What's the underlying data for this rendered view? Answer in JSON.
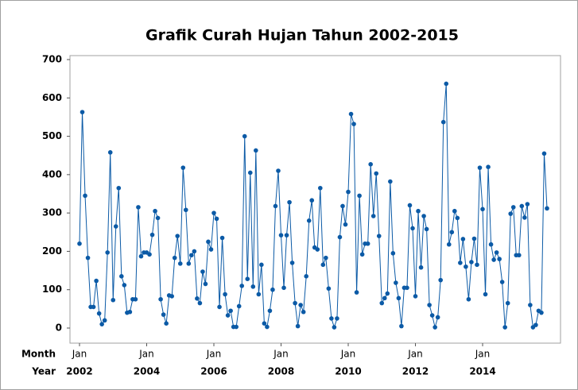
{
  "chart_data": {
    "type": "line",
    "title": "Grafik Curah Hujan Tahun 2002-2015",
    "x": [
      "2002-01",
      "2002-02",
      "2002-03",
      "2002-04",
      "2002-05",
      "2002-06",
      "2002-07",
      "2002-08",
      "2002-09",
      "2002-10",
      "2002-11",
      "2002-12",
      "2003-01",
      "2003-02",
      "2003-03",
      "2003-04",
      "2003-05",
      "2003-06",
      "2003-07",
      "2003-08",
      "2003-09",
      "2003-10",
      "2003-11",
      "2003-12",
      "2004-01",
      "2004-02",
      "2004-03",
      "2004-04",
      "2004-05",
      "2004-06",
      "2004-07",
      "2004-08",
      "2004-09",
      "2004-10",
      "2004-11",
      "2004-12",
      "2005-01",
      "2005-02",
      "2005-03",
      "2005-04",
      "2005-05",
      "2005-06",
      "2005-07",
      "2005-08",
      "2005-09",
      "2005-10",
      "2005-11",
      "2005-12",
      "2006-01",
      "2006-02",
      "2006-03",
      "2006-04",
      "2006-05",
      "2006-06",
      "2006-07",
      "2006-08",
      "2006-09",
      "2006-10",
      "2006-11",
      "2006-12",
      "2007-01",
      "2007-02",
      "2007-03",
      "2007-04",
      "2007-05",
      "2007-06",
      "2007-07",
      "2007-08",
      "2007-09",
      "2007-10",
      "2007-11",
      "2007-12",
      "2008-01",
      "2008-02",
      "2008-03",
      "2008-04",
      "2008-05",
      "2008-06",
      "2008-07",
      "2008-08",
      "2008-09",
      "2008-10",
      "2008-11",
      "2008-12",
      "2009-01",
      "2009-02",
      "2009-03",
      "2009-04",
      "2009-05",
      "2009-06",
      "2009-07",
      "2009-08",
      "2009-09",
      "2009-10",
      "2009-11",
      "2009-12",
      "2010-01",
      "2010-02",
      "2010-03",
      "2010-04",
      "2010-05",
      "2010-06",
      "2010-07",
      "2010-08",
      "2010-09",
      "2010-10",
      "2010-11",
      "2010-12",
      "2011-01",
      "2011-02",
      "2011-03",
      "2011-04",
      "2011-05",
      "2011-06",
      "2011-07",
      "2011-08",
      "2011-09",
      "2011-10",
      "2011-11",
      "2011-12",
      "2012-01",
      "2012-02",
      "2012-03",
      "2012-04",
      "2012-05",
      "2012-06",
      "2012-07",
      "2012-08",
      "2012-09",
      "2012-10",
      "2012-11",
      "2012-12",
      "2013-01",
      "2013-02",
      "2013-03",
      "2013-04",
      "2013-05",
      "2013-06",
      "2013-07",
      "2013-08",
      "2013-09",
      "2013-10",
      "2013-11",
      "2013-12",
      "2014-01",
      "2014-02",
      "2014-03",
      "2014-04",
      "2014-05",
      "2014-06",
      "2014-07",
      "2014-08",
      "2014-09",
      "2014-10",
      "2014-11",
      "2014-12",
      "2015-01",
      "2015-02",
      "2015-03",
      "2015-04",
      "2015-05",
      "2015-06",
      "2015-07",
      "2015-08",
      "2015-09",
      "2015-10",
      "2015-11",
      "2015-12"
    ],
    "series": [
      {
        "color": "#0b5aa6",
        "values": [
          220,
          563,
          345,
          183,
          55,
          55,
          123,
          38,
          10,
          20,
          197,
          458,
          73,
          265,
          365,
          135,
          112,
          40,
          42,
          75,
          75,
          315,
          187,
          197,
          197,
          192,
          243,
          305,
          287,
          75,
          35,
          12,
          85,
          83,
          183,
          240,
          168,
          418,
          308,
          168,
          190,
          200,
          77,
          65,
          147,
          115,
          225,
          205,
          300,
          285,
          55,
          235,
          88,
          33,
          45,
          3,
          3,
          57,
          110,
          500,
          128,
          405,
          108,
          463,
          88,
          165,
          12,
          3,
          45,
          100,
          318,
          410,
          242,
          105,
          242,
          328,
          170,
          65,
          5,
          60,
          42,
          135,
          280,
          333,
          210,
          205,
          365,
          165,
          183,
          103,
          25,
          2,
          25,
          237,
          318,
          270,
          355,
          558,
          532,
          93,
          345,
          192,
          220,
          220,
          427,
          292,
          403,
          240,
          65,
          78,
          90,
          382,
          195,
          118,
          78,
          5,
          105,
          105,
          320,
          260,
          83,
          305,
          158,
          292,
          258,
          60,
          33,
          2,
          28,
          125,
          537,
          637,
          218,
          250,
          305,
          287,
          170,
          232,
          160,
          75,
          172,
          233,
          165,
          418,
          310,
          88,
          420,
          218,
          178,
          197,
          180,
          120,
          2,
          65,
          298,
          315,
          190,
          190,
          318,
          288,
          323,
          60,
          2,
          8,
          45,
          40,
          455,
          312
        ]
      }
    ],
    "x_row_labels": [
      "Month",
      "Year"
    ],
    "xticks": [
      {
        "value": "2002-01",
        "month": "Jan",
        "year": "2002"
      },
      {
        "value": "2004-01",
        "month": "Jan",
        "year": "2004"
      },
      {
        "value": "2006-01",
        "month": "Jan",
        "year": "2006"
      },
      {
        "value": "2008-01",
        "month": "Jan",
        "year": "2008"
      },
      {
        "value": "2010-01",
        "month": "Jan",
        "year": "2010"
      },
      {
        "value": "2012-01",
        "month": "Jan",
        "year": "2012"
      },
      {
        "value": "2014-01",
        "month": "Jan",
        "year": "2014"
      }
    ],
    "ylim": [
      0,
      700
    ],
    "yticks": [
      0,
      100,
      200,
      300,
      400,
      500,
      600,
      700
    ],
    "grid": false
  }
}
